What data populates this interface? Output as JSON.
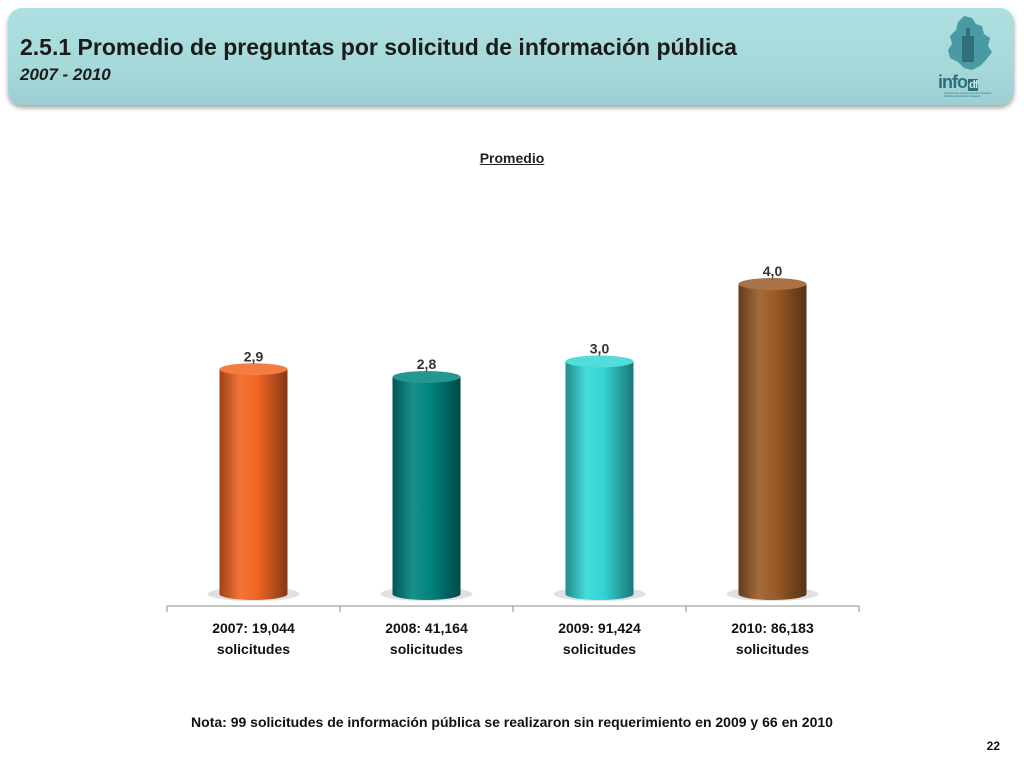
{
  "header": {
    "title": "2.5.1 Promedio de preguntas por solicitud de información pública",
    "subtitle": "2007 - 2010",
    "logo_text": "info",
    "logo_suffix": "df",
    "logo_caption": "Instituto de Acceso a la Información Pública del Distrito Federal"
  },
  "chart_data": {
    "type": "bar",
    "title": "Promedio",
    "categories": [
      [
        "2007: 19,044",
        "solicitudes"
      ],
      [
        "2008: 41,164",
        "solicitudes"
      ],
      [
        "2009: 91,424",
        "solicitudes"
      ],
      [
        "2010: 86,183",
        "solicitudes"
      ]
    ],
    "values": [
      2.9,
      2.8,
      3.0,
      4.0
    ],
    "value_labels": [
      "2,9",
      "2,8",
      "3,0",
      "4,0"
    ],
    "colors": [
      "#f26522",
      "#00847f",
      "#33d6d6",
      "#9a5a26"
    ],
    "ylim": [
      0,
      4.2
    ],
    "grid": false,
    "legend": "none"
  },
  "footer": {
    "note": "Nota: 99 solicitudes de información pública se realizaron sin requerimiento en 2009 y 66 en 2010",
    "page_number": "22"
  }
}
